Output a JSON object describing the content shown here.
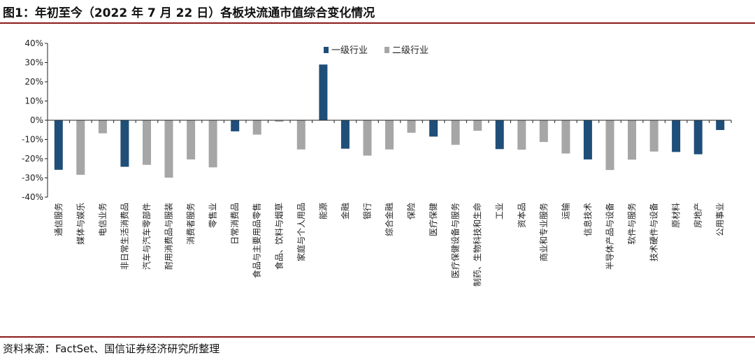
{
  "figure": {
    "title": "图1：年初至今（2022 年 7 月 22 日）各板块流通市值综合变化情况",
    "source": "资料来源：FactSet、国信证券经济研究所整理"
  },
  "chart_data": {
    "type": "bar",
    "title": "",
    "xlabel": "",
    "ylabel": "",
    "ylim": [
      -40,
      40
    ],
    "yticks": [
      "40%",
      "30%",
      "20%",
      "10%",
      "0%",
      "-10%",
      "-20%",
      "-30%",
      "-40%"
    ],
    "legend_position": "top-center",
    "colors": {
      "一级行业": "#1f4e79",
      "二级行业": "#a6a6a6"
    },
    "legend": [
      "一级行业",
      "二级行业"
    ],
    "categories": [
      "通信服务",
      "媒体与娱乐",
      "电信业务",
      "非日常生活消费品",
      "汽车与汽车零部件",
      "耐用消费品与服装",
      "消费者服务",
      "零售业",
      "日常消费品",
      "食品与主要用品零售",
      "食品、饮料与烟草",
      "家庭与个人用品",
      "能源",
      "金融",
      "银行",
      "综合金融",
      "保险",
      "医疗保健",
      "医疗保健设备与服务",
      "制药、生物科技和生命",
      "工业",
      "资本品",
      "商业和专业服务",
      "运输",
      "信息技术",
      "半导体产品与设备",
      "软件与服务",
      "技术硬件与设备",
      "原材料",
      "房地产",
      "公用事业"
    ],
    "levels": [
      "一级行业",
      "二级行业",
      "二级行业",
      "一级行业",
      "二级行业",
      "二级行业",
      "二级行业",
      "二级行业",
      "一级行业",
      "二级行业",
      "二级行业",
      "二级行业",
      "一级行业",
      "一级行业",
      "二级行业",
      "二级行业",
      "二级行业",
      "一级行业",
      "二级行业",
      "二级行业",
      "一级行业",
      "二级行业",
      "二级行业",
      "二级行业",
      "一级行业",
      "二级行业",
      "二级行业",
      "二级行业",
      "一级行业",
      "一级行业",
      "一级行业"
    ],
    "values": [
      -25.8,
      -28.4,
      -6.8,
      -24.2,
      -23.2,
      -29.9,
      -20.4,
      -24.5,
      -5.8,
      -7.5,
      -0.8,
      -15.2,
      29.0,
      -14.8,
      -18.4,
      -15.2,
      -6.5,
      -8.5,
      -12.8,
      -5.5,
      -15.0,
      -15.3,
      -11.3,
      -17.3,
      -20.4,
      -25.9,
      -20.5,
      -16.3,
      -16.5,
      -17.7,
      -5.1
    ]
  }
}
